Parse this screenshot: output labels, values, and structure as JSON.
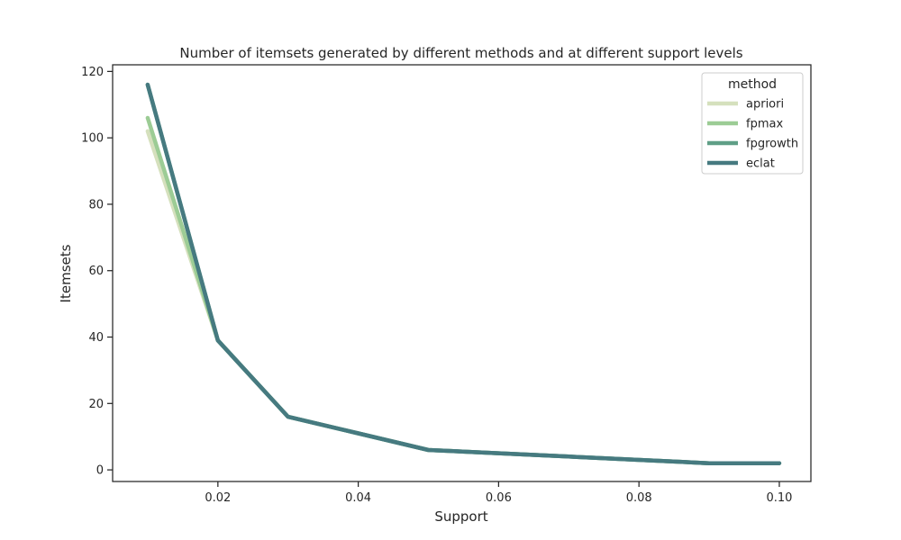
{
  "chart_data": {
    "type": "line",
    "title": "Number of itemsets generated by different methods and at different support levels",
    "xlabel": "Support",
    "ylabel": "Itemsets",
    "xlim": [
      0.005,
      0.1045
    ],
    "ylim": [
      -3.5,
      122
    ],
    "xticks": [
      0.02,
      0.04,
      0.06,
      0.08,
      0.1
    ],
    "xtick_labels": [
      "0.02",
      "0.04",
      "0.06",
      "0.08",
      "0.10"
    ],
    "yticks": [
      0,
      20,
      40,
      60,
      80,
      100,
      120
    ],
    "ytick_labels": [
      "0",
      "20",
      "40",
      "60",
      "80",
      "100",
      "120"
    ],
    "grid": false,
    "legend": {
      "title": "method",
      "placement": "top-right"
    },
    "x": [
      0.01,
      0.02,
      0.03,
      0.04,
      0.05,
      0.06,
      0.07,
      0.08,
      0.09,
      0.1
    ],
    "series": [
      {
        "name": "apriori",
        "color": "#d5e0bd",
        "values": [
          102,
          39,
          16,
          11,
          6,
          5,
          4,
          3,
          2,
          2
        ]
      },
      {
        "name": "fpmax",
        "color": "#9ccc95",
        "values": [
          106,
          39,
          16,
          11,
          6,
          5,
          4,
          3,
          2,
          2
        ]
      },
      {
        "name": "fpgrowth",
        "color": "#5f9f86",
        "values": [
          116,
          39,
          16,
          11,
          6,
          5,
          4,
          3,
          2,
          2
        ]
      },
      {
        "name": "eclat",
        "color": "#467a80",
        "values": [
          116,
          39,
          16,
          11,
          6,
          5,
          4,
          3,
          2,
          2
        ]
      }
    ]
  }
}
